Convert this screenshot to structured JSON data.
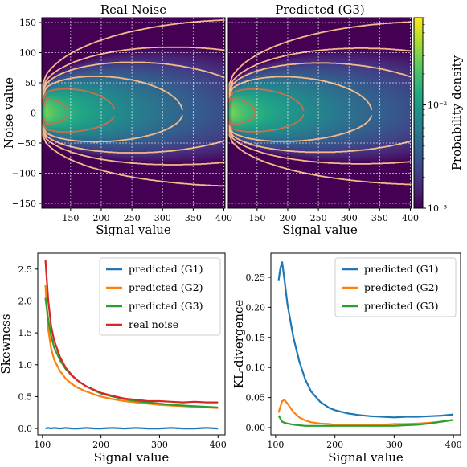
{
  "colors": {
    "bg_dark": "#440154",
    "g1": "#1f77b4",
    "g2": "#ff7f0e",
    "g3": "#2ca02c",
    "real": "#d62728",
    "contour_light": "#f4b98a",
    "contour_mid": "#c8704e",
    "contour_dark": "#6b3a23"
  },
  "chart_data": [
    {
      "type": "heatmap",
      "title": "Real Noise",
      "xlabel": "Signal value",
      "ylabel": "Noise value",
      "xlim": [
        103,
        402
      ],
      "ylim": [
        -158,
        158
      ],
      "xticks": [
        150,
        200,
        250,
        300,
        350,
        400
      ],
      "yticks": [
        -150,
        -100,
        -50,
        0,
        50,
        100,
        150
      ],
      "grid": true,
      "contour_levels": [
        0.0003,
        0.001,
        0.002,
        0.004,
        0.008,
        0.016,
        0.03,
        0.05
      ],
      "density_model": {
        "peak_x": 110,
        "sigma_base": 8,
        "sigma_growth": 3.3,
        "skew": 1
      }
    },
    {
      "type": "heatmap",
      "title": "Predicted (G3)",
      "xlabel": "Signal value",
      "ylabel": "",
      "xlim": [
        103,
        402
      ],
      "ylim": [
        -158,
        158
      ],
      "xticks": [
        150,
        200,
        250,
        300,
        350,
        400
      ],
      "yticks": [
        -150,
        -100,
        -50,
        0,
        50,
        100,
        150
      ],
      "grid": true,
      "contour_levels": [
        0.0003,
        0.001,
        0.002,
        0.004,
        0.008,
        0.016,
        0.03,
        0.05
      ],
      "density_model": {
        "peak_x": 110,
        "sigma_base": 8,
        "sigma_growth": 3.2,
        "skew": 1
      }
    },
    {
      "type": "colorbar",
      "label": "Probability density",
      "scale": "log",
      "range": [
        0.001,
        0.07
      ],
      "ticks": [
        {
          "value": 0.01,
          "label": "10⁻²"
        },
        {
          "value": 0.001,
          "label": "10⁻³"
        }
      ]
    },
    {
      "type": "line",
      "title": "",
      "xlabel": "Signal value",
      "ylabel": "Skewness",
      "xlim": [
        92,
        412
      ],
      "ylim": [
        -0.1,
        2.75
      ],
      "xticks": [
        100,
        200,
        300,
        400
      ],
      "yticks": [
        0.0,
        0.5,
        1.0,
        1.5,
        2.0,
        2.5
      ],
      "ytick_labels": [
        "0.0",
        "0.5",
        "1.0",
        "1.5",
        "2.0",
        "2.5"
      ],
      "legend": "top-right",
      "x": [
        105,
        110,
        115,
        120,
        130,
        140,
        150,
        160,
        175,
        190,
        200,
        220,
        240,
        260,
        280,
        300,
        320,
        340,
        360,
        380,
        400
      ],
      "series": [
        {
          "name": "predicted (G1)",
          "color": "g1",
          "values": [
            0.0,
            0.01,
            0.0,
            0.01,
            0.0,
            0.01,
            0.0,
            0.0,
            0.01,
            0.0,
            0.0,
            0.01,
            0.0,
            0.01,
            0.0,
            0.0,
            0.01,
            0.0,
            0.0,
            0.01,
            0.0
          ]
        },
        {
          "name": "predicted (G2)",
          "color": "g2",
          "values": [
            2.25,
            1.55,
            1.25,
            1.08,
            0.9,
            0.78,
            0.7,
            0.64,
            0.58,
            0.53,
            0.5,
            0.46,
            0.43,
            0.41,
            0.39,
            0.37,
            0.36,
            0.35,
            0.34,
            0.33,
            0.32
          ]
        },
        {
          "name": "predicted (G3)",
          "color": "g3",
          "values": [
            2.05,
            1.7,
            1.45,
            1.27,
            1.07,
            0.93,
            0.83,
            0.75,
            0.66,
            0.59,
            0.55,
            0.5,
            0.46,
            0.43,
            0.41,
            0.39,
            0.37,
            0.36,
            0.35,
            0.34,
            0.33
          ]
        },
        {
          "name": "real noise",
          "color": "real",
          "values": [
            2.65,
            2.0,
            1.6,
            1.38,
            1.12,
            0.95,
            0.84,
            0.75,
            0.66,
            0.6,
            0.56,
            0.51,
            0.47,
            0.45,
            0.43,
            0.43,
            0.42,
            0.41,
            0.42,
            0.41,
            0.41
          ]
        }
      ]
    },
    {
      "type": "line",
      "title": "",
      "xlabel": "Signal value",
      "ylabel": "KL-divergence",
      "xlim": [
        92,
        412
      ],
      "ylim": [
        -0.012,
        0.29
      ],
      "xticks": [
        100,
        200,
        300,
        400
      ],
      "yticks": [
        0.0,
        0.05,
        0.1,
        0.15,
        0.2,
        0.25
      ],
      "ytick_labels": [
        "0.00",
        "0.05",
        "0.10",
        "0.15",
        "0.20",
        "0.25"
      ],
      "legend": "top-right",
      "x": [
        105,
        108,
        111,
        115,
        120,
        130,
        140,
        150,
        160,
        175,
        190,
        200,
        220,
        240,
        260,
        280,
        300,
        320,
        340,
        360,
        380,
        400
      ],
      "series": [
        {
          "name": "predicted (G1)",
          "color": "g1",
          "values": [
            0.245,
            0.265,
            0.275,
            0.245,
            0.205,
            0.15,
            0.11,
            0.08,
            0.06,
            0.043,
            0.033,
            0.029,
            0.024,
            0.021,
            0.019,
            0.018,
            0.017,
            0.018,
            0.018,
            0.019,
            0.02,
            0.022
          ]
        },
        {
          "name": "predicted (G2)",
          "color": "g2",
          "values": [
            0.025,
            0.035,
            0.044,
            0.046,
            0.04,
            0.026,
            0.017,
            0.012,
            0.009,
            0.007,
            0.006,
            0.005,
            0.005,
            0.005,
            0.005,
            0.005,
            0.006,
            0.006,
            0.007,
            0.008,
            0.01,
            0.013
          ]
        },
        {
          "name": "predicted (G3)",
          "color": "g3",
          "values": [
            0.02,
            0.015,
            0.01,
            0.008,
            0.007,
            0.005,
            0.004,
            0.003,
            0.003,
            0.003,
            0.003,
            0.003,
            0.003,
            0.003,
            0.003,
            0.003,
            0.003,
            0.004,
            0.005,
            0.007,
            0.01,
            0.013
          ]
        }
      ]
    }
  ]
}
